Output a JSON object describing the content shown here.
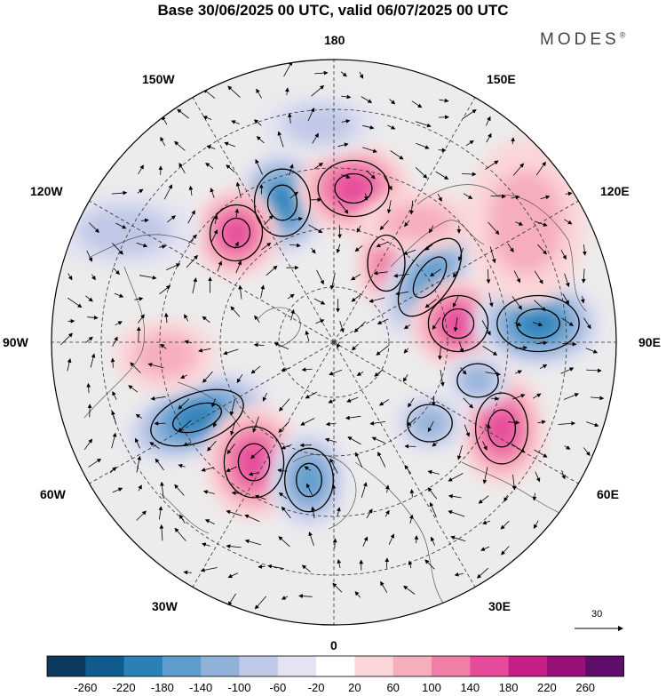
{
  "title": "Base 30/06/2025 00 UTC, valid 06/07/2025 00 UTC",
  "brand": "MODES",
  "brand_mark": "®",
  "longitude_labels": {
    "top": "180",
    "top_left": "150W",
    "top_right": "150E",
    "upper_left": "120W",
    "upper_right": "120E",
    "left": "90W",
    "right": "90E",
    "lower_left": "60W",
    "lower_right": "60E",
    "bottom_left": "30W",
    "bottom_right": "30E",
    "bottom": "0"
  },
  "reference_vector": {
    "label": "30"
  },
  "colorbar": {
    "labels": [
      "-260",
      "-220",
      "-180",
      "-140",
      "-100",
      "-60",
      "-20",
      "20",
      "60",
      "100",
      "140",
      "180",
      "220",
      "260"
    ],
    "colors": [
      "#0b3a5e",
      "#0f5b8e",
      "#2c80b8",
      "#5d9ccc",
      "#90b1d8",
      "#bfc8e6",
      "#e3e3f1",
      "#ffffff",
      "#fbd6d8",
      "#f6aebc",
      "#f07fa8",
      "#e64b9b",
      "#c81e87",
      "#98107a",
      "#5e0d6a"
    ]
  },
  "map_colors": {
    "neutral": "#ececec",
    "coast": "#555555",
    "grid": "#333333"
  },
  "anomalies": [
    {
      "sign": -1,
      "level": 5
    },
    {
      "sign": 1,
      "level": 4
    },
    {
      "sign": 1,
      "level": 4
    },
    {
      "sign": 1,
      "level": 3
    },
    {
      "sign": -1,
      "level": 4
    },
    {
      "sign": 1,
      "level": 4
    },
    {
      "sign": -1,
      "level": 5
    },
    {
      "sign": -1,
      "level": 5
    },
    {
      "sign": 1,
      "level": 4
    },
    {
      "sign": -1,
      "level": 4
    },
    {
      "sign": 1,
      "level": 4
    },
    {
      "sign": -1,
      "level": 3
    },
    {
      "sign": -1,
      "level": 3
    },
    {
      "sign": 1,
      "level": 2
    },
    {
      "sign": 1,
      "level": 2
    },
    {
      "sign": -1,
      "level": 2
    },
    {
      "sign": 1,
      "level": 2
    },
    {
      "sign": -1,
      "level": 2
    }
  ]
}
